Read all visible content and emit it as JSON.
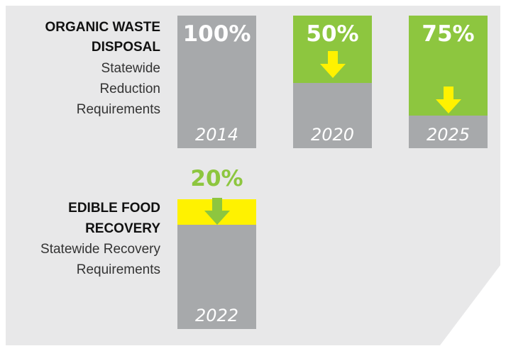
{
  "colors": {
    "panel": "#e8e8e9",
    "bar": "#a7a9ab",
    "green": "#8dc63f",
    "yellow": "#fff200",
    "white": "#ffffff"
  },
  "sections": {
    "organic": {
      "heading_line1": "ORGANIC WASTE",
      "heading_line2": "DISPOSAL",
      "sub_line1": "Statewide",
      "sub_line2": "Reduction",
      "sub_line3": "Requirements"
    },
    "edible": {
      "heading_line1": "EDIBLE FOOD",
      "heading_line2": "RECOVERY",
      "sub_line1": "Statewide Recovery",
      "sub_line2": "Requirements"
    }
  },
  "chart_data": [
    {
      "type": "bar",
      "title": "ORGANIC WASTE DISPOSAL Statewide Reduction Requirements",
      "categories": [
        "2014",
        "2020",
        "2025"
      ],
      "labels": [
        "100%",
        "50%",
        "75%"
      ],
      "values": [
        100,
        50,
        75
      ],
      "unit": "%",
      "ylim": [
        0,
        100
      ]
    },
    {
      "type": "bar",
      "title": "EDIBLE FOOD RECOVERY Statewide Recovery Requirements",
      "categories": [
        "2022"
      ],
      "labels": [
        "20%"
      ],
      "values": [
        20
      ],
      "unit": "%",
      "ylim": [
        0,
        100
      ]
    }
  ]
}
